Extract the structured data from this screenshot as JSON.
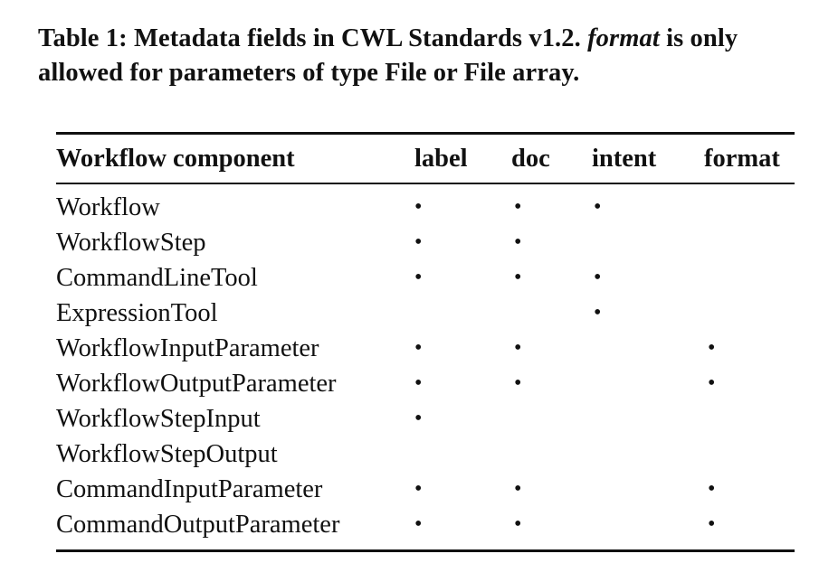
{
  "caption": {
    "prefix": "Table 1: Metadata fields in CWL Standards v1.2.",
    "italic_word": "format",
    "suffix": "is only allowed for parameters of type File or File array."
  },
  "table": {
    "headers": [
      "Workflow component",
      "label",
      "doc",
      "intent",
      "format"
    ],
    "mark_symbol": "•",
    "rows": [
      {
        "component": "Workflow",
        "label": "•",
        "doc": "•",
        "intent": "•",
        "format": ""
      },
      {
        "component": "WorkflowStep",
        "label": "•",
        "doc": "•",
        "intent": "",
        "format": ""
      },
      {
        "component": "CommandLineTool",
        "label": "•",
        "doc": "•",
        "intent": "•",
        "format": ""
      },
      {
        "component": "ExpressionTool",
        "label": "",
        "doc": "",
        "intent": "•",
        "format": ""
      },
      {
        "component": "WorkflowInputParameter",
        "label": "•",
        "doc": "•",
        "intent": "",
        "format": "•"
      },
      {
        "component": "WorkflowOutputParameter",
        "label": "•",
        "doc": "•",
        "intent": "",
        "format": "•"
      },
      {
        "component": "WorkflowStepInput",
        "label": "•",
        "doc": "",
        "intent": "",
        "format": ""
      },
      {
        "component": "WorkflowStepOutput",
        "label": "",
        "doc": "",
        "intent": "",
        "format": ""
      },
      {
        "component": "CommandInputParameter",
        "label": "•",
        "doc": "•",
        "intent": "",
        "format": "•"
      },
      {
        "component": "CommandOutputParameter",
        "label": "•",
        "doc": "•",
        "intent": "",
        "format": "•"
      }
    ]
  }
}
